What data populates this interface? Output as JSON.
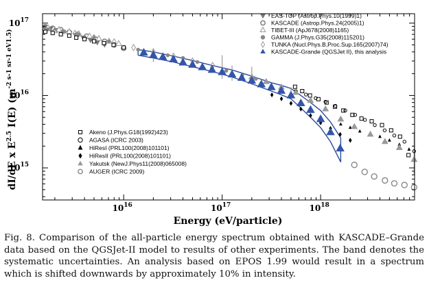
{
  "chart_data": {
    "type": "scatter",
    "xlabel": "Energy (eV/particle)",
    "ylabel_parts": {
      "prefix": "dI/dE x E",
      "power": "2.5",
      "middle": " I(E) (m",
      "unit_tail": "-2 s-1 sr-1 eV1.5)"
    },
    "x_scale": "log",
    "y_scale": "log",
    "xlim": [
      1500000000000000.0,
      9e+18
    ],
    "ylim": [
      360000000000000.0,
      1.35e+17
    ],
    "x_ticks": [
      {
        "value": 1e+16,
        "base": "10",
        "exp": "16"
      },
      {
        "value": 1e+17,
        "base": "10",
        "exp": "17"
      },
      {
        "value": 1e+18,
        "base": "10",
        "exp": "18"
      }
    ],
    "y_ticks": [
      {
        "value": 1000000000000000.0,
        "base": "10",
        "exp": "15"
      },
      {
        "value": 1e+16,
        "base": "10",
        "exp": "16"
      },
      {
        "value": 1e+17,
        "base": "10",
        "exp": "17"
      }
    ],
    "legend_top": [
      {
        "label": "EAS-TOP (Astrop.Phys.10(1999)1)",
        "marker": "tri-down",
        "color": "#777777"
      },
      {
        "label": "KASCADE (Astrop.Phys.24(2005)1)",
        "marker": "circle-open",
        "color": "#777777"
      },
      {
        "label": "TIBET-III (ApJ678(2008)1165)",
        "marker": "tri-up-open",
        "color": "#999999"
      },
      {
        "label": "GAMMA (J.Phys.G35(2008)115201)",
        "marker": "circle",
        "color": "#888888"
      },
      {
        "label": "TUNKA (Nucl.Phys.B,Proc.Sup.165(2007)74)",
        "marker": "diamond-open",
        "color": "#999999"
      },
      {
        "label": "KASCADE-Grande (QGSJet II), this analysis",
        "marker": "tri-up",
        "color": "#3355aa"
      }
    ],
    "legend_bottom": [
      {
        "label": "Akeno (J.Phys.G18(1992)423)",
        "marker": "square-open",
        "color": "#000000"
      },
      {
        "label": "AGASA (ICRC 2003)",
        "marker": "circle-open-small",
        "color": "#000000"
      },
      {
        "label": "HiResI (PRL100(2008)101101)",
        "marker": "tri-up-small",
        "color": "#000000"
      },
      {
        "label": "HiResII (PRL100(2008)101101)",
        "marker": "diamond",
        "color": "#000000"
      },
      {
        "label": "Yakutsk (NewJ.Phys11(2008)065008)",
        "marker": "tri-up",
        "color": "#999999"
      },
      {
        "label": "AUGER (ICRC 2009)",
        "marker": "circle-open",
        "color": "#888888"
      }
    ],
    "series": [
      {
        "name": "KASCADE-Grande (QGSJet II), this analysis",
        "marker": "tri-up",
        "color": "#3355aa",
        "size": 7,
        "points": [
          [
            1.6e+16,
            3.9e+16
          ],
          [
            2e+16,
            3.6e+16
          ],
          [
            2.5e+16,
            3.4e+16
          ],
          [
            3.2e+16,
            3.15e+16
          ],
          [
            4e+16,
            2.85e+16
          ],
          [
            5e+16,
            2.65e+16
          ],
          [
            6.3e+16,
            2.45e+16
          ],
          [
            7.9e+16,
            2.25e+16
          ],
          [
            1e+17,
            2.1e+16
          ],
          [
            1.26e+17,
            1.95e+16
          ],
          [
            1.58e+17,
            1.75e+16
          ],
          [
            2e+17,
            1.6e+16
          ],
          [
            2.5e+17,
            1.42e+16
          ],
          [
            3.16e+17,
            1.3e+16
          ],
          [
            3.98e+17,
            1.16e+16
          ],
          [
            5e+17,
            1e+16
          ],
          [
            6.3e+17,
            7800000000000000.0
          ],
          [
            7.9e+17,
            6300000000000000.0
          ],
          [
            1e+18,
            4700000000000000.0
          ],
          [
            1.26e+18,
            3100000000000000.0
          ],
          [
            1.58e+18,
            1850000000000000.0
          ]
        ]
      },
      {
        "name": "EAS-TOP (Astrop.Phys.10(1999)1)",
        "marker": "tri-down",
        "color": "#777777",
        "size": 5,
        "points": [
          [
            1600000000000000.0,
            8.8e+16
          ],
          [
            1800000000000000.0,
            8.4e+16
          ],
          [
            2100000000000000.0,
            8e+16
          ],
          [
            2400000000000000.0,
            7.6e+16
          ],
          [
            2800000000000000.0,
            7.2e+16
          ],
          [
            3300000000000000.0,
            6.8e+16
          ],
          [
            3900000000000000.0,
            6.3e+16
          ],
          [
            4600000000000000.0,
            5.9e+16
          ],
          [
            5400000000000000.0,
            5.5e+16
          ],
          [
            6400000000000000.0,
            5.1e+16
          ]
        ]
      },
      {
        "name": "KASCADE (Astrop.Phys.24(2005)1)",
        "marker": "circle-open",
        "color": "#777777",
        "size": 3.3,
        "points": [
          [
            1600000000000000.0,
            8.9e+16
          ],
          [
            1900000000000000.0,
            8.5e+16
          ],
          [
            2300000000000000.0,
            8.1e+16
          ],
          [
            2800000000000000.0,
            7.5e+16
          ],
          [
            3400000000000000.0,
            7e+16
          ],
          [
            4200000000000000.0,
            6.6e+16
          ],
          [
            5200000000000000.0,
            6e+16
          ],
          [
            6400000000000000.0,
            5.6e+16
          ],
          [
            8000000000000000.0,
            5e+16
          ],
          [
            1e+16,
            4.5e+16
          ]
        ]
      },
      {
        "name": "TIBET-III (ApJ678(2008)1165)",
        "marker": "tri-up-open",
        "color": "#999999",
        "size": 4.5,
        "points": [
          [
            1700000000000000.0,
            8.6e+16
          ],
          [
            2200000000000000.0,
            8.1e+16
          ],
          [
            2800000000000000.0,
            7.6e+16
          ],
          [
            3500000000000000.0,
            7.1e+16
          ],
          [
            4500000000000000.0,
            6.6e+16
          ],
          [
            5600000000000000.0,
            6.1e+16
          ],
          [
            7100000000000000.0,
            5.6e+16
          ],
          [
            8900000000000000.0,
            5.2e+16
          ]
        ]
      },
      {
        "name": "GAMMA (J.Phys.G35(2008)115201)",
        "marker": "circle",
        "color": "#888888",
        "size": 2.8,
        "points": [
          [
            1700000000000000.0,
            8.2e+16
          ],
          [
            2500000000000000.0,
            7.6e+16
          ],
          [
            3500000000000000.0,
            7e+16
          ],
          [
            5000000000000000.0,
            6.4e+16
          ],
          [
            7100000000000000.0,
            5.6e+16
          ],
          [
            1e+16,
            4.7e+16
          ],
          [
            1.4e+16,
            4.3e+16
          ],
          [
            2e+16,
            3.9e+16
          ],
          [
            2.8e+16,
            3.6e+16
          ],
          [
            4e+16,
            3.3e+16
          ],
          [
            5.6e+16,
            2.9e+16
          ],
          [
            7.9e+16,
            2.4e+16
          ],
          [
            1.1e+17,
            2.2e+16
          ],
          [
            1.6e+17,
            1.9e+16
          ],
          [
            2.2e+17,
            1.7e+16
          ]
        ]
      },
      {
        "name": "TUNKA (Nucl.Phys.B,Proc.Sup.165(2007)74)",
        "marker": "diamond-open",
        "color": "#999999",
        "size": 3.5,
        "points": [
          [
            2000000000000000.0,
            8e+16
          ],
          [
            3200000000000000.0,
            7.2e+16
          ],
          [
            5000000000000000.0,
            6.3e+16
          ],
          [
            8000000000000000.0,
            5.5e+16
          ],
          [
            1.26e+16,
            4.6e+16
          ],
          [
            2e+16,
            4e+16
          ],
          [
            3.2e+16,
            3.5e+16
          ],
          [
            5e+16,
            3e+16
          ],
          [
            8e+16,
            2.6e+16
          ]
        ]
      },
      {
        "name": "Akeno (J.Phys.G18(1992)423)",
        "marker": "square-open",
        "color": "#000000",
        "size": 2.5,
        "points": [
          [
            1600000000000000.0,
            7.6e+16
          ],
          [
            1900000000000000.0,
            7.3e+16
          ],
          [
            2300000000000000.0,
            7e+16
          ],
          [
            2800000000000000.0,
            6.7e+16
          ],
          [
            3300000000000000.0,
            6.3e+16
          ],
          [
            4000000000000000.0,
            6e+16
          ],
          [
            5000000000000000.0,
            5.6e+16
          ],
          [
            6300000000000000.0,
            5.3e+16
          ],
          [
            7900000000000000.0,
            5e+16
          ],
          [
            1e+16,
            4.6e+16
          ],
          [
            5.5e+17,
            1.32e+16
          ],
          [
            6.5e+17,
            1.15e+16
          ],
          [
            7.8e+17,
            1e+16
          ],
          [
            9.5e+17,
            8900000000000000.0
          ],
          [
            1.15e+18,
            8000000000000000.0
          ],
          [
            1.4e+18,
            7000000000000000.0
          ],
          [
            1.7e+18,
            6200000000000000.0
          ],
          [
            2.1e+18,
            5400000000000000.0
          ],
          [
            2.6e+18,
            4800000000000000.0
          ],
          [
            3.3e+18,
            4400000000000000.0
          ],
          [
            4.2e+18,
            3900000000000000.0
          ],
          [
            5.2e+18,
            3300000000000000.0
          ],
          [
            6.4e+18,
            2700000000000000.0
          ],
          [
            7.8e+18,
            1500000000000000.0
          ]
        ]
      },
      {
        "name": "AGASA (ICRC 2003)",
        "marker": "circle-open-small",
        "color": "#000000",
        "size": 2.2,
        "points": [
          [
            5.6e+17,
            1.15e+16
          ],
          [
            7.1e+17,
            1.03e+16
          ],
          [
            8.9e+17,
            9200000000000000.0
          ],
          [
            1.12e+18,
            8200000000000000.0
          ],
          [
            1.41e+18,
            7200000000000000.0
          ],
          [
            1.78e+18,
            6200000000000000.0
          ],
          [
            2.24e+18,
            5400000000000000.0
          ],
          [
            2.82e+18,
            4600000000000000.0
          ],
          [
            3.55e+18,
            3900000000000000.0
          ],
          [
            4.47e+18,
            3300000000000000.0
          ],
          [
            5.6e+18,
            2800000000000000.0
          ],
          [
            7.1e+18,
            2300000000000000.0
          ],
          [
            8.9e+18,
            1700000000000000.0
          ]
        ]
      },
      {
        "name": "HiResI (PRL100(2008)101101)",
        "marker": "tri-up-small",
        "color": "#000000",
        "size": 3,
        "points": [
          [
            1.6e+18,
            4000000000000000.0
          ],
          [
            2e+18,
            3600000000000000.0
          ],
          [
            2.5e+18,
            3200000000000000.0
          ],
          [
            3.2e+18,
            2900000000000000.0
          ],
          [
            4e+18,
            2700000000000000.0
          ],
          [
            5e+18,
            2400000000000000.0
          ],
          [
            6.3e+18,
            2100000000000000.0
          ],
          [
            7.9e+18,
            1800000000000000.0
          ]
        ]
      },
      {
        "name": "HiResII (PRL100(2008)101101)",
        "marker": "diamond",
        "color": "#000000",
        "size": 2.8,
        "points": [
          [
            3.2e+17,
            1.02e+16
          ],
          [
            4e+17,
            9000000000000000.0
          ],
          [
            5e+17,
            7800000000000000.0
          ],
          [
            6.3e+17,
            6500000000000000.0
          ],
          [
            7.9e+17,
            5300000000000000.0
          ],
          [
            1e+18,
            4200000000000000.0
          ],
          [
            1.26e+18,
            3500000000000000.0
          ],
          [
            1.58e+18,
            2900000000000000.0
          ],
          [
            2e+18,
            2400000000000000.0
          ]
        ]
      },
      {
        "name": "Yakutsk (NewJ.Phys11(2008)065008)",
        "marker": "tri-up",
        "color": "#999999",
        "size": 5.5,
        "points": [
          [
            2e+17,
            1.8e+16
          ],
          [
            2.8e+17,
            1.55e+16
          ],
          [
            4e+17,
            1.3e+16
          ],
          [
            5.6e+17,
            1.1e+16
          ],
          [
            7.9e+17,
            8500000000000000.0
          ],
          [
            1.12e+18,
            6500000000000000.0
          ],
          [
            1.6e+18,
            4700000000000000.0
          ],
          [
            2.2e+18,
            3700000000000000.0
          ],
          [
            3.2e+18,
            2900000000000000.0
          ],
          [
            4.5e+18,
            2300000000000000.0
          ],
          [
            6.3e+18,
            1900000000000000.0
          ],
          [
            8.9e+18,
            1300000000000000.0
          ]
        ]
      },
      {
        "name": "AUGER (ICRC 2009)",
        "marker": "circle-open",
        "color": "#888888",
        "size": 4,
        "points": [
          [
            2.2e+18,
            1100000000000000.0
          ],
          [
            2.8e+18,
            880000000000000.0
          ],
          [
            3.5e+18,
            760000000000000.0
          ],
          [
            4.5e+18,
            670000000000000.0
          ],
          [
            5.6e+18,
            610000000000000.0
          ],
          [
            7.1e+18,
            580000000000000.0
          ],
          [
            8.9e+18,
            540000000000000.0
          ]
        ]
      }
    ],
    "band": {
      "upper": [
        [
          1.4e+16,
          4.3e+16
        ],
        [
          2e+16,
          4e+16
        ],
        [
          3.2e+16,
          3.5e+16
        ],
        [
          5e+16,
          3.05e+16
        ],
        [
          7.9e+16,
          2.6e+16
        ],
        [
          1.26e+17,
          2.25e+16
        ],
        [
          2e+17,
          1.85e+16
        ],
        [
          3.16e+17,
          1.5e+16
        ],
        [
          4e+17,
          1.38e+16
        ],
        [
          5e+17,
          1.25e+16
        ],
        [
          6.3e+17,
          1e+16
        ],
        [
          7.9e+17,
          8000000000000000.0
        ],
        [
          1e+18,
          6200000000000000.0
        ],
        [
          1.26e+18,
          4300000000000000.0
        ],
        [
          1.6e+18,
          2600000000000000.0
        ]
      ],
      "lower": [
        [
          1.4e+16,
          3.6e+16
        ],
        [
          2e+16,
          3.3e+16
        ],
        [
          3.2e+16,
          2.9e+16
        ],
        [
          5e+16,
          2.5e+16
        ],
        [
          7.9e+16,
          2.15e+16
        ],
        [
          1.26e+17,
          1.8e+16
        ],
        [
          2e+17,
          1.45e+16
        ],
        [
          3.16e+17,
          1.15e+16
        ],
        [
          4e+17,
          1.02e+16
        ],
        [
          5e+17,
          9000000000000000.0
        ],
        [
          6.3e+17,
          6700000000000000.0
        ],
        [
          7.9e+17,
          5000000000000000.0
        ],
        [
          1e+18,
          3600000000000000.0
        ],
        [
          1.26e+18,
          2300000000000000.0
        ],
        [
          1.6e+18,
          1200000000000000.0
        ]
      ]
    },
    "error_bars": [
      {
        "x": 2e+16,
        "low": 2.9e+16,
        "high": 4.5e+16
      },
      {
        "x": 1e+17,
        "low": 1.7e+16,
        "high": 3.6e+16
      },
      {
        "x": 1.26e+17,
        "low": 1.6e+16,
        "high": 2.6e+16
      },
      {
        "x": 2e+17,
        "low": 1.4e+16,
        "high": 2.5e+16
      },
      {
        "x": 5e+17,
        "low": 1.1e+16,
        "high": 1.3e+16
      },
      {
        "x": 8.9e+18,
        "low": 800000000000000.0,
        "high": 3200000000000000.0
      }
    ]
  },
  "caption": "Fig. 8. Comparison of the all-particle energy spectrum obtained with KASCADE–Grande data based on the QGSJet-II model to results of other experiments. The band denotes the systematic uncertainties. An analysis based on EPOS 1.99 would result in a spectrum which is shifted downwards by approximately 10% in intensity."
}
